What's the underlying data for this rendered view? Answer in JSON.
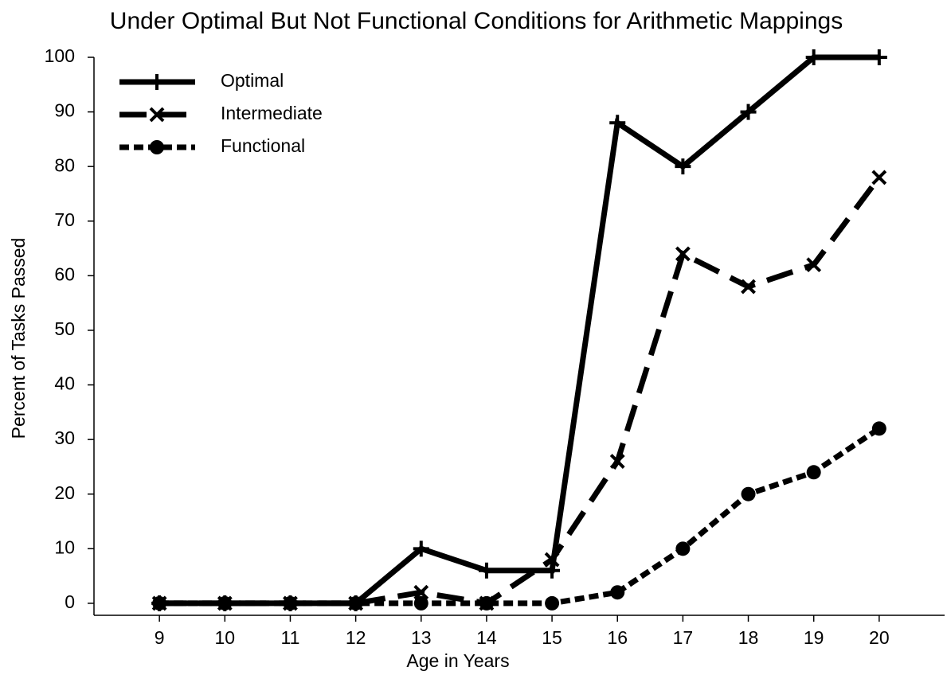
{
  "chart_data": {
    "type": "line",
    "title": "Under Optimal But Not Functional Conditions for Arithmetic Mappings",
    "xlabel": "Age in Years",
    "ylabel": "Percent of Tasks Passed",
    "x": [
      9,
      10,
      11,
      12,
      13,
      14,
      15,
      16,
      17,
      18,
      19,
      20
    ],
    "series": [
      {
        "name": "Optimal",
        "color": "#000000",
        "dash": "solid",
        "marker": "plus",
        "values": [
          0,
          0,
          0,
          0,
          10,
          6,
          6,
          88,
          80,
          90,
          100,
          100
        ]
      },
      {
        "name": "Intermediate",
        "color": "#000000",
        "dash": "dashed",
        "marker": "x",
        "values": [
          0,
          0,
          0,
          0,
          2,
          0,
          8,
          26,
          64,
          58,
          62,
          78
        ]
      },
      {
        "name": "Functional",
        "color": "#000000",
        "dash": "dotted",
        "marker": "circle",
        "values": [
          0,
          0,
          0,
          0,
          0,
          0,
          0,
          2,
          10,
          20,
          24,
          32
        ]
      }
    ],
    "xlim": [
      8,
      21
    ],
    "xticks": [
      9,
      10,
      11,
      12,
      13,
      14,
      15,
      16,
      17,
      18,
      19,
      20
    ],
    "ylim": [
      -2.2,
      100
    ],
    "yticks": [
      0,
      10,
      20,
      30,
      40,
      50,
      60,
      70,
      80,
      90,
      100
    ],
    "grid": false,
    "legend": "upper left"
  }
}
